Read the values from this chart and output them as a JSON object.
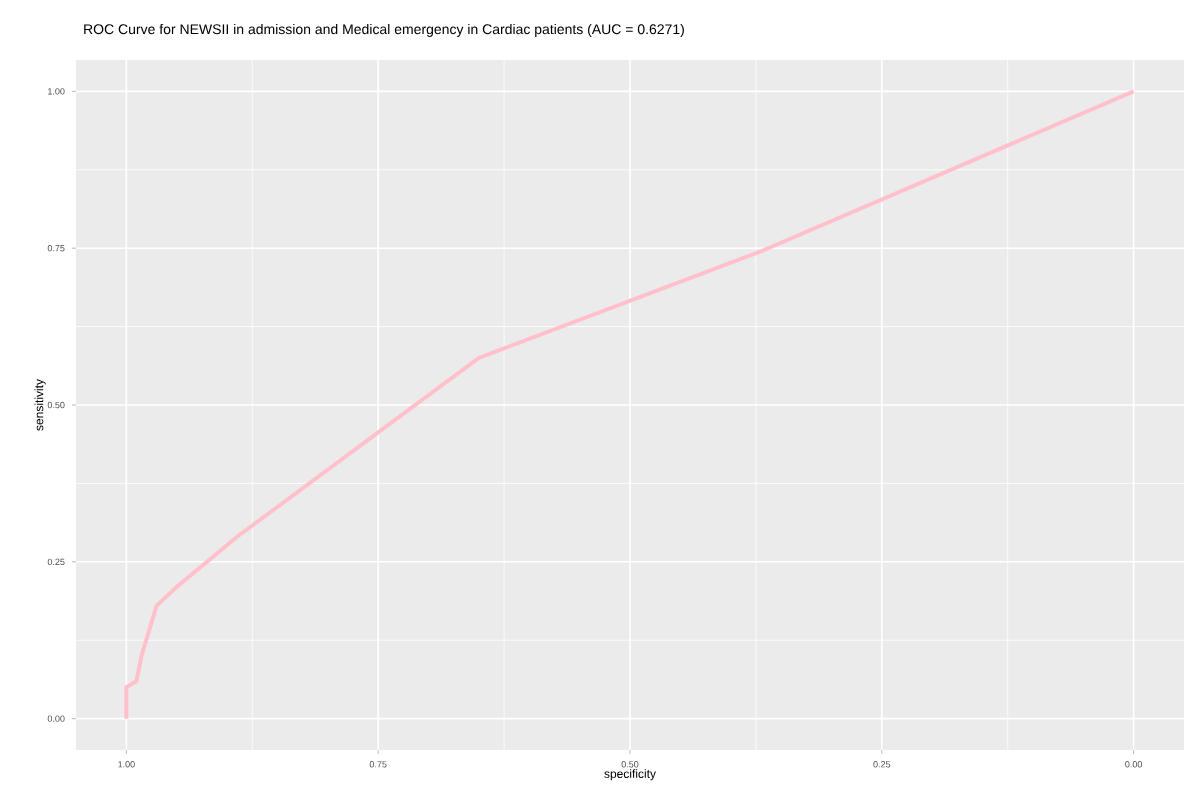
{
  "chart_data": {
    "type": "line",
    "title": "ROC Curve for NEWSII in admission and Medical emergency in Cardiac patients (AUC = 0.6271)",
    "xlabel": "specificity",
    "ylabel": "sensitivity",
    "series": [
      {
        "color": "#ffc0cb",
        "x": [
          1.0,
          1.0,
          0.99,
          0.985,
          0.97,
          0.95,
          0.89,
          0.65,
          0.37,
          0.0
        ],
        "values": [
          0.0,
          0.05,
          0.06,
          0.1,
          0.18,
          0.21,
          0.29,
          0.575,
          0.745,
          1.0
        ]
      }
    ],
    "xlim": [
      1.05,
      -0.05
    ],
    "ylim": [
      -0.05,
      1.05
    ],
    "xticks": [
      {
        "value": 1.0,
        "label": "1.00"
      },
      {
        "value": 0.75,
        "label": "0.75"
      },
      {
        "value": 0.5,
        "label": "0.50"
      },
      {
        "value": 0.25,
        "label": "0.25"
      },
      {
        "value": 0.0,
        "label": "0.00"
      }
    ],
    "yticks": [
      {
        "value": 0.0,
        "label": "0.00"
      },
      {
        "value": 0.25,
        "label": "0.25"
      },
      {
        "value": 0.5,
        "label": "0.50"
      },
      {
        "value": 0.75,
        "label": "0.75"
      },
      {
        "value": 1.0,
        "label": "1.00"
      }
    ],
    "grid": true
  }
}
